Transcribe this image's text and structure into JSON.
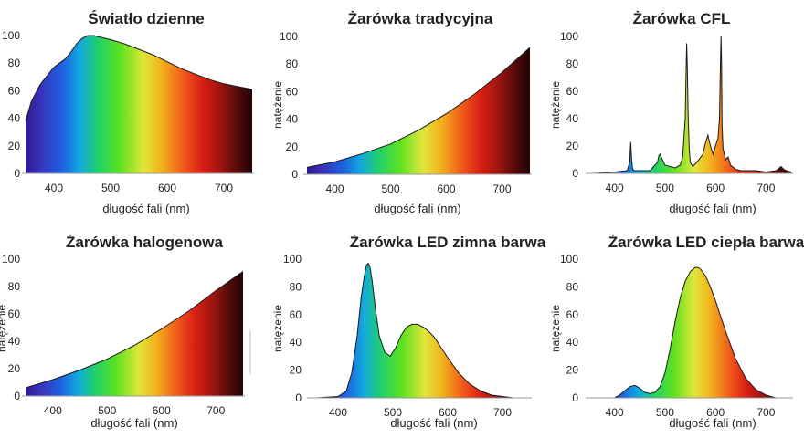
{
  "chart_data": [
    {
      "type": "area",
      "title": "Światło dzienne",
      "xlabel": "długość fali (nm)",
      "ylabel": "",
      "xlim": [
        350,
        750
      ],
      "ylim": [
        0,
        100
      ],
      "xticks": [
        400,
        500,
        600,
        700
      ],
      "yticks": [
        0,
        20,
        40,
        60,
        80,
        100
      ],
      "x": [
        350,
        360,
        375,
        390,
        400,
        410,
        420,
        430,
        440,
        450,
        460,
        470,
        480,
        500,
        525,
        550,
        575,
        600,
        625,
        650,
        675,
        700,
        725,
        750
      ],
      "y": [
        38,
        52,
        64,
        72,
        77,
        80,
        83,
        88,
        94,
        98,
        100,
        100,
        99,
        97,
        94,
        90,
        86,
        81,
        76,
        72,
        68,
        65,
        63,
        61
      ]
    },
    {
      "type": "area",
      "title": "Żarówka tradycyjna",
      "xlabel": "długość fali (nm)",
      "ylabel": "natężenie",
      "xlim": [
        350,
        750
      ],
      "ylim": [
        0,
        100
      ],
      "xticks": [
        400,
        500,
        600,
        700
      ],
      "yticks": [
        0,
        20,
        40,
        60,
        80,
        100
      ],
      "x": [
        350,
        400,
        450,
        500,
        550,
        600,
        650,
        700,
        750
      ],
      "y": [
        5,
        9,
        15,
        22,
        32,
        44,
        58,
        74,
        92
      ]
    },
    {
      "type": "area",
      "title": "Żarówka CFL",
      "xlabel": "długość fali (nm)",
      "ylabel": "natężenie",
      "xlim": [
        350,
        750
      ],
      "ylim": [
        0,
        100
      ],
      "xticks": [
        400,
        500,
        600,
        700
      ],
      "yticks": [
        0,
        20,
        40,
        60,
        80,
        100
      ],
      "x": [
        360,
        400,
        425,
        430,
        432,
        434,
        436,
        440,
        470,
        485,
        488,
        490,
        495,
        500,
        520,
        530,
        535,
        540,
        542,
        543,
        544,
        546,
        548,
        550,
        555,
        565,
        575,
        580,
        585,
        590,
        595,
        600,
        605,
        608,
        610,
        611,
        612,
        613,
        615,
        620,
        625,
        630,
        640,
        650,
        680,
        700,
        720,
        730,
        735,
        740,
        750
      ],
      "y": [
        0,
        1,
        2,
        8,
        23,
        10,
        3,
        2,
        2,
        8,
        13,
        14,
        10,
        6,
        4,
        6,
        12,
        40,
        80,
        95,
        80,
        40,
        18,
        8,
        5,
        9,
        14,
        22,
        28,
        20,
        14,
        20,
        26,
        40,
        82,
        100,
        80,
        35,
        18,
        10,
        12,
        6,
        3,
        2,
        2,
        1,
        2,
        5,
        3,
        2,
        1
      ]
    },
    {
      "type": "area",
      "title": "Żarówka halogenowa",
      "xlabel": "długość fali (nm)",
      "ylabel": "natężenie",
      "xlim": [
        350,
        750
      ],
      "ylim": [
        0,
        100
      ],
      "xticks": [
        400,
        500,
        600,
        700
      ],
      "yticks": [
        0,
        20,
        40,
        60,
        80,
        100
      ],
      "x": [
        350,
        400,
        450,
        500,
        550,
        600,
        650,
        700,
        750
      ],
      "y": [
        6,
        12,
        19,
        27,
        37,
        49,
        62,
        77,
        91
      ]
    },
    {
      "type": "area",
      "title": "Żarówka LED zimna barwa",
      "xlabel": "długość fali (nm)",
      "ylabel": "natężenie",
      "xlim": [
        350,
        750
      ],
      "ylim": [
        0,
        100
      ],
      "xticks": [
        400,
        500,
        600,
        700
      ],
      "yticks": [
        0,
        20,
        40,
        60,
        80,
        100
      ],
      "x": [
        360,
        400,
        415,
        425,
        435,
        442,
        448,
        452,
        455,
        458,
        462,
        468,
        475,
        485,
        495,
        505,
        515,
        525,
        535,
        545,
        555,
        565,
        575,
        585,
        600,
        620,
        640,
        660,
        680,
        700,
        720,
        740
      ],
      "y": [
        0,
        1,
        5,
        18,
        45,
        72,
        88,
        96,
        97,
        95,
        85,
        65,
        45,
        33,
        30,
        36,
        45,
        51,
        53,
        53,
        51,
        48,
        44,
        38,
        29,
        18,
        10,
        5,
        2,
        1,
        0,
        0
      ]
    },
    {
      "type": "area",
      "title": "Żarówka LED ciepła barwa",
      "xlabel": "długość fali (nm)",
      "ylabel": "natężenie",
      "xlim": [
        350,
        750
      ],
      "ylim": [
        0,
        100
      ],
      "xticks": [
        400,
        500,
        600,
        700
      ],
      "yticks": [
        0,
        20,
        40,
        60,
        80,
        100
      ],
      "x": [
        360,
        400,
        410,
        420,
        430,
        440,
        450,
        460,
        470,
        480,
        490,
        500,
        510,
        520,
        530,
        540,
        550,
        560,
        565,
        570,
        580,
        590,
        600,
        620,
        640,
        660,
        680,
        700,
        720,
        740
      ],
      "y": [
        0,
        0,
        2,
        5,
        8,
        9,
        7,
        4,
        3,
        4,
        8,
        18,
        35,
        55,
        72,
        84,
        91,
        94,
        94,
        93,
        88,
        80,
        70,
        48,
        28,
        14,
        6,
        2,
        0,
        0
      ]
    }
  ]
}
